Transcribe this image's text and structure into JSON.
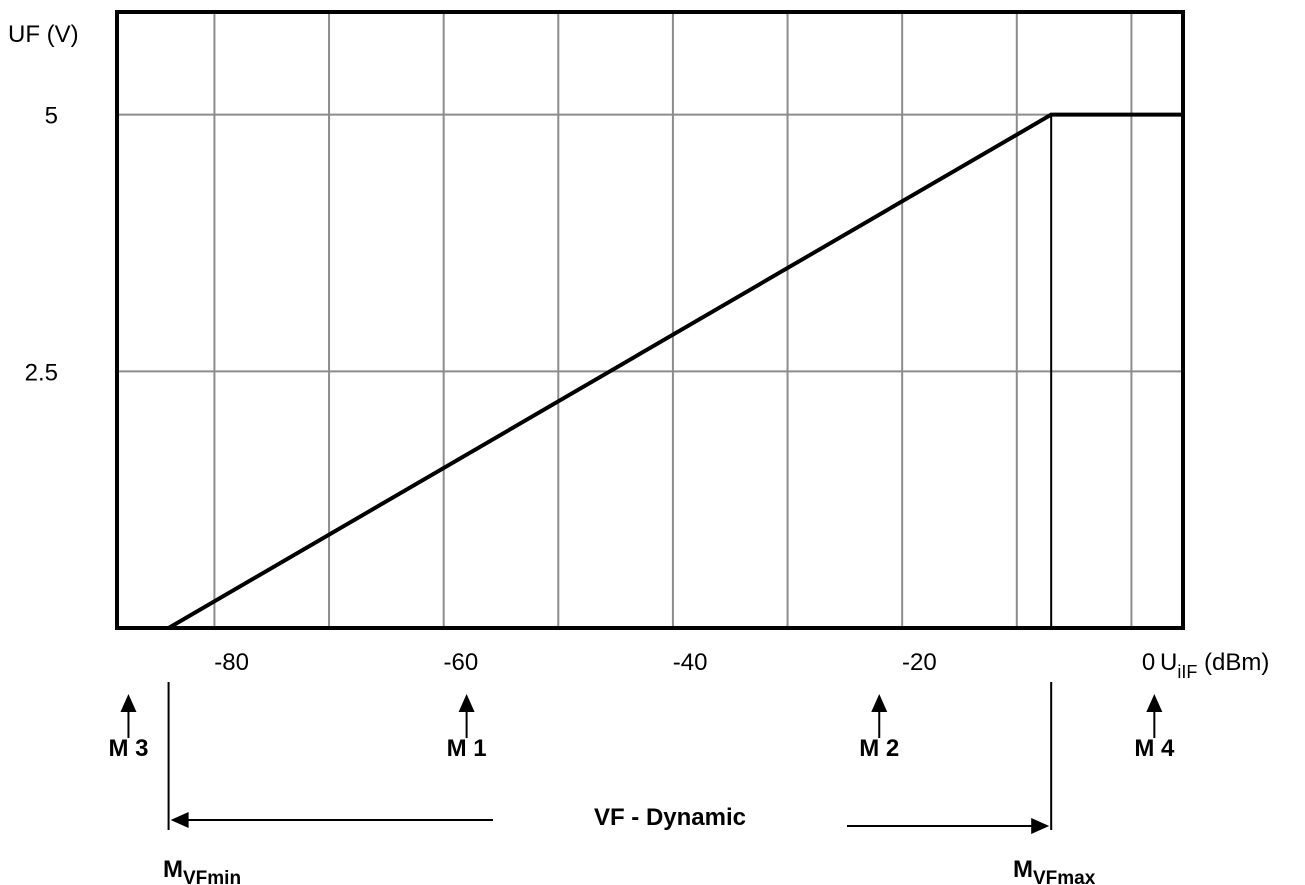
{
  "chart_data": {
    "type": "line",
    "title": "",
    "ylabel": "UF (V)",
    "xlabel": {
      "main": "U",
      "sub": "iIF",
      "unit": " (dBm)"
    },
    "xlim": [
      -90,
      3
    ],
    "ylim": [
      0,
      6
    ],
    "xticks": [
      -80,
      -60,
      -40,
      -20,
      0
    ],
    "xtick_labels": [
      "-80",
      "-60",
      "-40",
      "-20",
      "0"
    ],
    "yticks": [
      2.5,
      5
    ],
    "ytick_labels": [
      "2.5",
      "5"
    ],
    "vertical_gridlines": [
      -81.5,
      -71.5,
      -61.5,
      -51.5,
      -41.5,
      -31.5,
      -21.5,
      -11.5,
      -1.5
    ],
    "horizontal_gridlines": [
      2.5,
      5
    ],
    "grid": true,
    "series": [
      {
        "x": [
          -85.5,
          -8.5,
          3
        ],
        "y": [
          0,
          5,
          5
        ]
      }
    ],
    "saturation_marker_x": -8.5,
    "markers": [
      {
        "label": "M 3",
        "x": -89
      },
      {
        "label": "M 1",
        "x": -59.5
      },
      {
        "label": "M 2",
        "x": -23.5
      },
      {
        "label": "M 4",
        "x": 0.5
      }
    ],
    "dynamic_range": {
      "label": "VF - Dynamic",
      "from_x": -85.5,
      "to_x": -8.5,
      "min_label": {
        "main": "M",
        "sub": "VFmin"
      },
      "max_label": {
        "main": "M",
        "sub": "VFmax"
      }
    }
  }
}
